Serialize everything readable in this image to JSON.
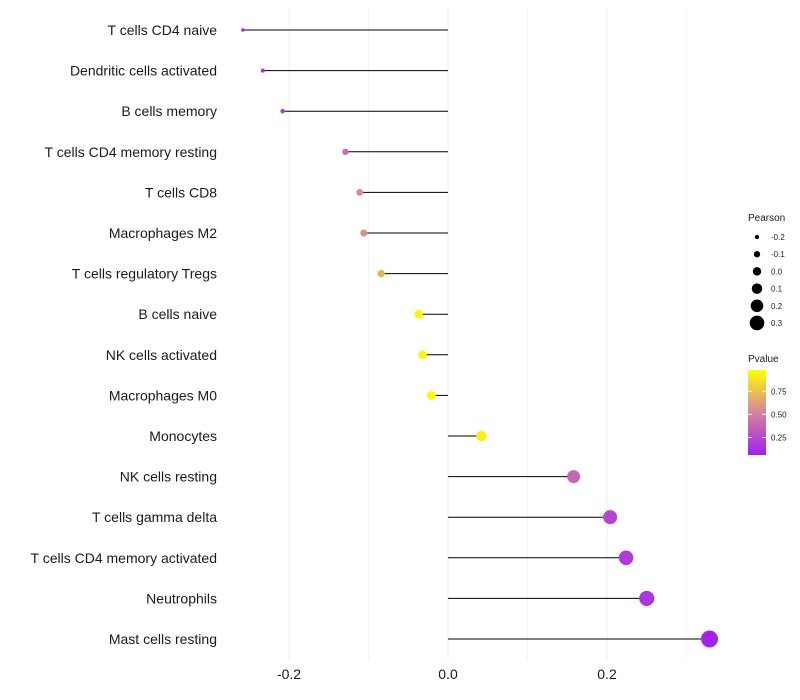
{
  "chart_data": {
    "type": "lollipop",
    "title": "",
    "xlabel": "",
    "ylabel": "",
    "xlim": [
      -0.27,
      0.35
    ],
    "x_ticks": [
      -0.2,
      0.0,
      0.2
    ],
    "x_tick_labels": [
      "-0.2",
      "0.0",
      "0.2"
    ],
    "grid": true,
    "categories": [
      "T cells CD4 naive",
      "Dendritic cells activated",
      "B cells memory",
      "T cells CD4 memory resting",
      "T cells CD8",
      "Macrophages M2",
      "T cells regulatory  Tregs ",
      "B cells naive",
      "NK cells activated",
      "Macrophages M0",
      "Monocytes",
      "NK cells resting",
      "T cells gamma delta",
      "T cells CD4 memory activated",
      "Neutrophils",
      "Mast cells resting"
    ],
    "values": [
      -0.258,
      -0.233,
      -0.208,
      -0.129,
      -0.111,
      -0.106,
      -0.084,
      -0.037,
      -0.032,
      -0.021,
      0.042,
      0.158,
      0.204,
      0.224,
      0.25,
      0.329
    ],
    "pvalues": [
      0.13,
      0.14,
      0.2,
      0.42,
      0.55,
      0.57,
      0.7,
      0.95,
      0.96,
      0.97,
      0.92,
      0.38,
      0.24,
      0.19,
      0.16,
      0.08
    ],
    "legend_size": {
      "title": "Pearson",
      "values": [
        -0.2,
        -0.1,
        0.0,
        0.1,
        0.2,
        0.3
      ],
      "labels": [
        "-0.2",
        "-0.1",
        "0.0",
        "0.1",
        "0.2",
        "0.3"
      ]
    },
    "legend_color": {
      "title": "Pvalue",
      "ticks": [
        0.75,
        0.5,
        0.25
      ],
      "labels": [
        "0.75",
        "0.50",
        "0.25"
      ],
      "range": [
        0.06,
        0.98
      ],
      "low_color": "#a020f0",
      "mid_color": "#d4849c",
      "high_color": "#ffff00"
    },
    "legend_position": "right",
    "colors": {
      "stem": "#000000",
      "grid": "#ececec",
      "text": "#1a1a1a",
      "background": "#ffffff"
    }
  }
}
